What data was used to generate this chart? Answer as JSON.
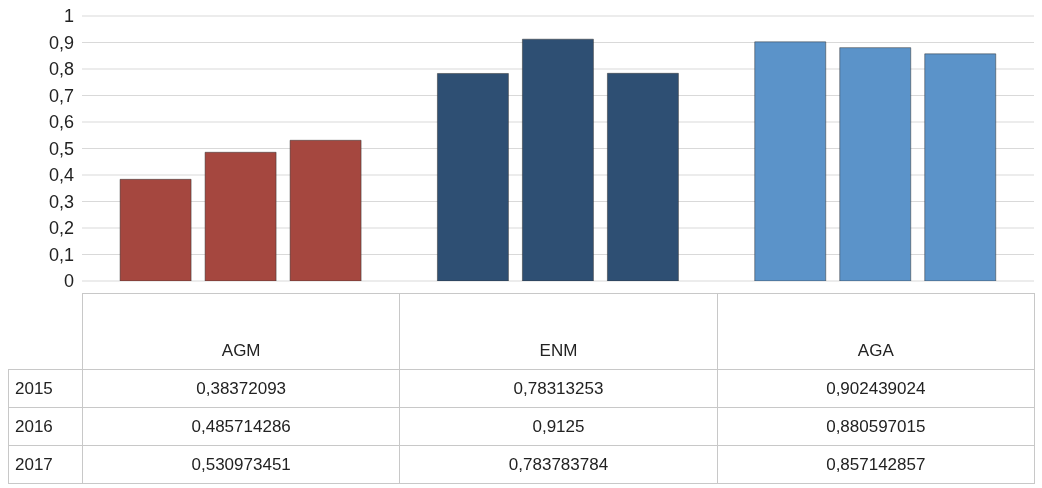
{
  "chart_data": {
    "type": "bar",
    "categories": [
      "AGM",
      "ENM",
      "AGA"
    ],
    "annotations": [
      "2015",
      "2016",
      "2017"
    ],
    "series": [
      {
        "colors": [
          "#a5473f",
          "#2e4f73",
          "#5b93c9"
        ],
        "values": [
          0.38372093,
          0.78313253,
          0.902439024
        ],
        "value_labels": [
          "0,38372093",
          "0,78313253",
          "0,902439024"
        ]
      },
      {
        "colors": [
          "#a5473f",
          "#2e4f73",
          "#5b93c9"
        ],
        "values": [
          0.485714286,
          0.9125,
          0.880597015
        ],
        "value_labels": [
          "0,485714286",
          "0,9125",
          "0,880597015"
        ]
      },
      {
        "colors": [
          "#a5473f",
          "#2e4f73",
          "#5b93c9"
        ],
        "values": [
          0.530973451,
          0.783783784,
          0.857142857
        ],
        "value_labels": [
          "0,530973451",
          "0,783783784",
          "0,857142857"
        ]
      }
    ],
    "ylim": [
      0,
      1
    ],
    "yticks": [
      0,
      {
        "value": 0.1,
        "label": "0,1"
      },
      {
        "value": 0.2,
        "label": "0,2"
      },
      {
        "value": 0.3,
        "label": "0,3"
      },
      {
        "value": 0.4,
        "label": "0,4"
      },
      {
        "value": 0.5,
        "label": "0,5"
      },
      {
        "value": 0.6,
        "label": "0,6"
      },
      {
        "value": 0.7,
        "label": "0,7"
      },
      {
        "value": 0.8,
        "label": "0,8"
      },
      {
        "value": 0.9,
        "label": "0,9"
      },
      1
    ],
    "grid": "y"
  }
}
